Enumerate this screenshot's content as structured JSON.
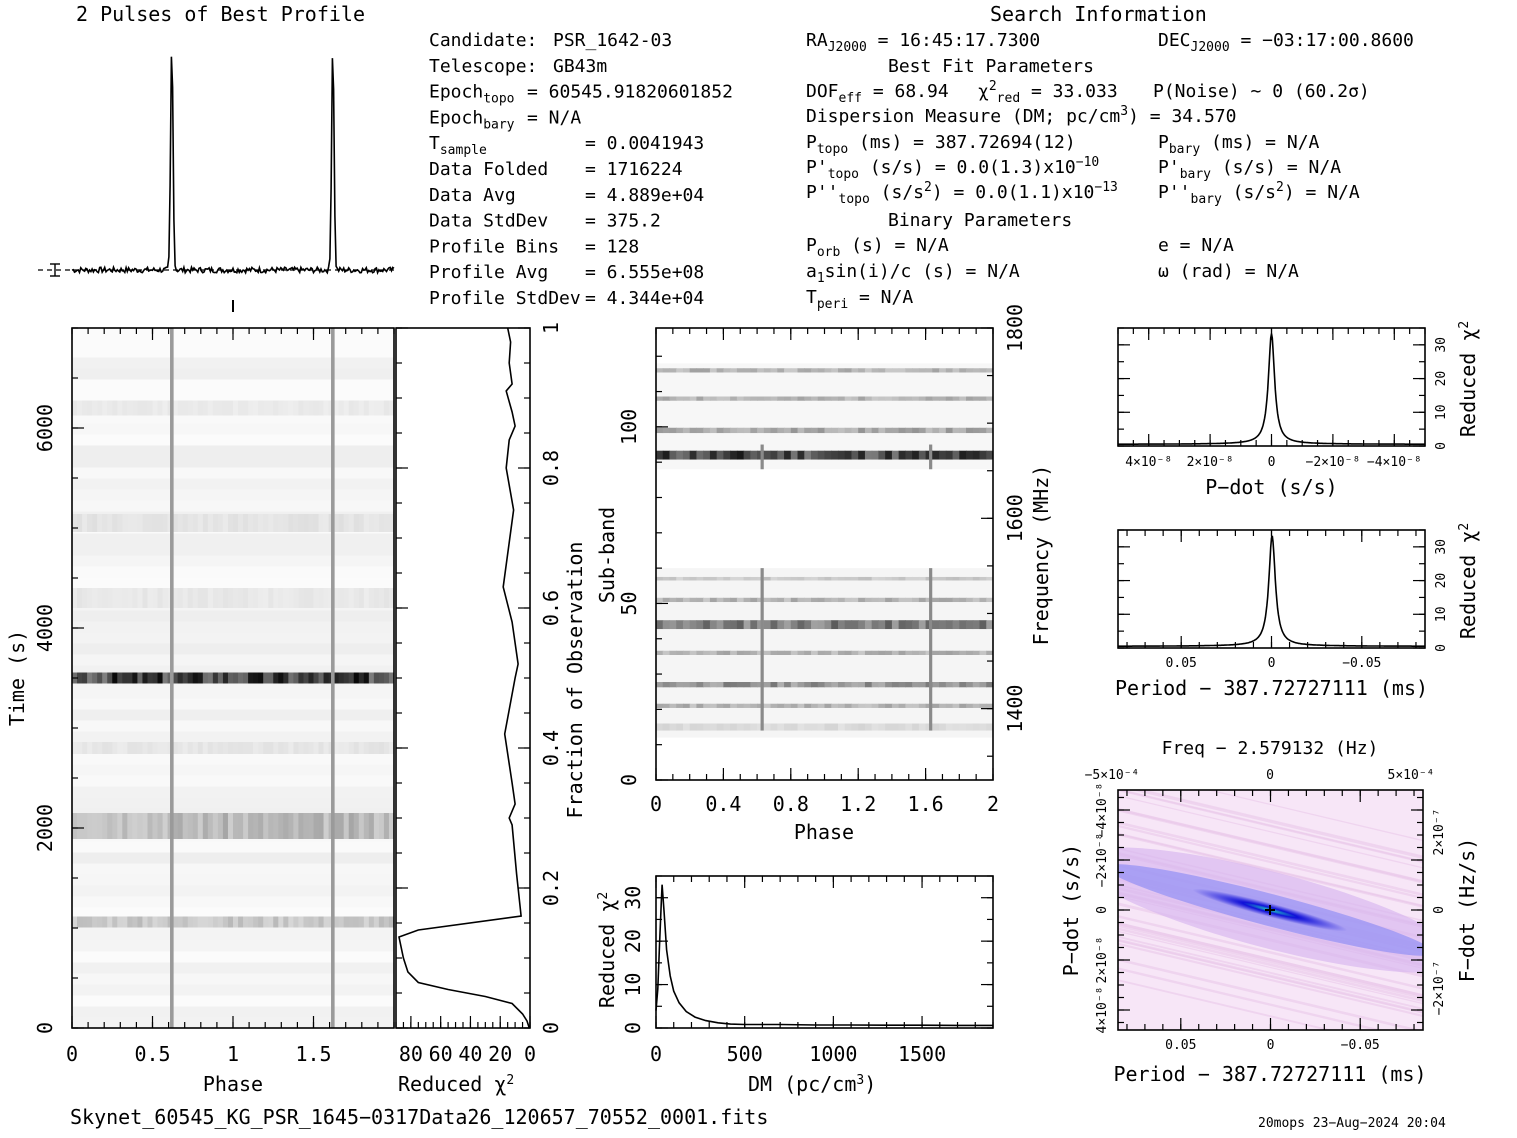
{
  "header": {
    "profile_title": "2 Pulses of Best Profile",
    "search_title": "Search Information",
    "best_fit_title": "Best Fit Parameters",
    "binary_title": "Binary Parameters"
  },
  "candidate_info": [
    {
      "label": "Candidate:",
      "value": "PSR_1642-03"
    },
    {
      "label": "Telescope:",
      "value": "GB43m"
    },
    {
      "label": "Epoch",
      "sub": "topo",
      "value": "= 60545.91820601852"
    },
    {
      "label": "Epoch",
      "sub": "bary",
      "value": "= N/A"
    },
    {
      "label": "T",
      "sub": "sample",
      "value": "= 0.0041943"
    },
    {
      "label": "Data Folded",
      "value": "= 1716224"
    },
    {
      "label": "Data Avg",
      "value": "= 4.889e+04"
    },
    {
      "label": "Data StdDev",
      "value": "= 375.2"
    },
    {
      "label": "Profile Bins",
      "value": "= 128"
    },
    {
      "label": "Profile Avg",
      "value": "= 6.555e+08"
    },
    {
      "label": "Profile StdDev",
      "value": "= 4.344e+04"
    }
  ],
  "search_info": {
    "ra": {
      "label": "RA",
      "sub": "J2000",
      "value": "= 16:45:17.7300"
    },
    "dec": {
      "label": "DEC",
      "sub": "J2000",
      "value": "= −03:17:00.8600"
    },
    "dof": {
      "label": "DOF",
      "sub": "eff",
      "value": "= 68.94"
    },
    "chi2": {
      "label": "χ",
      "sup": "2",
      "sub": "red",
      "value": "= 33.033"
    },
    "noise": "P(Noise) ~ 0   (60.2σ)",
    "dm": "Dispersion Measure (DM; pc/cm",
    "dm_sup": "3",
    "dm_value": ") = 34.570",
    "p_topo": {
      "label": "P",
      "sub": "topo",
      "value": "(ms) =  387.72694(12)"
    },
    "p_bary": {
      "label": "P",
      "sub": "bary",
      "value": "(ms) = N/A"
    },
    "pd_topo": {
      "label": "P'",
      "sub": "topo",
      "value": "(s/s) = 0.0(1.3)x10",
      "exp": "−10"
    },
    "pd_bary": {
      "label": "P'",
      "sub": "bary",
      "value": "(s/s) = N/A"
    },
    "pdd_topo": {
      "label": "P''",
      "sub": "topo",
      "value": "(s/s",
      "value2": ") = 0.0(1.1)x10",
      "sup": "2",
      "exp": "−13"
    },
    "pdd_bary": {
      "label": "P''",
      "sub": "bary",
      "value": "(s/s",
      "value2": ") = N/A",
      "sup": "2"
    },
    "p_orb": {
      "label": "P",
      "sub": "orb",
      "value": "(s) = N/A"
    },
    "e": "e = N/A",
    "a1": {
      "label": "a",
      "sub": "1",
      "value": "sin(i)/c (s) = N/A"
    },
    "omega": "ω (rad) = N/A",
    "t_peri": {
      "label": "T",
      "sub": "peri",
      "value": "= N/A"
    }
  },
  "footer": {
    "filename": "Skynet_60545_KG_PSR_1645−0317Data26_120657_70552_0001.fits",
    "stamp": "20mops 23−Aug−2024 20:04"
  },
  "colors": {
    "ink": "#000000",
    "grey": "#888888",
    "ppdot_bg": "#f7e6f7",
    "ppdot_core": "#1a1aff",
    "ppdot_center": "#20c0c0"
  },
  "chart_data": [
    {
      "id": "profile",
      "type": "line",
      "title": "2 Pulses of Best Profile",
      "xlim": [
        0,
        2
      ],
      "peaks": [
        0.62,
        1.62
      ],
      "baseline": 0.0,
      "peak_height": 1.0
    },
    {
      "id": "time_phase",
      "type": "heatmap",
      "xlabel": "Phase",
      "ylabel": "Time (s)",
      "xlim": [
        0,
        2
      ],
      "ylim": [
        0,
        7000
      ],
      "x_ticks": [
        "0",
        "0.5",
        "1",
        "1.5"
      ],
      "x_tick_values": [
        0,
        0.5,
        1,
        1.5
      ],
      "y_ticks": [
        "0",
        "2000",
        "4000",
        "6000"
      ],
      "y_tick_values": [
        0,
        2000,
        4000,
        6000
      ],
      "pulse_phases": [
        0.62,
        1.62
      ],
      "bands": [
        {
          "t": 3500,
          "w": 110,
          "level": 0.85
        },
        {
          "t": 2020,
          "w": 260,
          "level": 0.28
        },
        {
          "t": 1060,
          "w": 110,
          "level": 0.22
        },
        {
          "t": 5050,
          "w": 180,
          "level": 0.08
        },
        {
          "t": 4300,
          "w": 200,
          "level": 0.06
        },
        {
          "t": 2800,
          "w": 120,
          "level": 0.07
        },
        {
          "t": 6200,
          "w": 150,
          "level": 0.05
        }
      ]
    },
    {
      "id": "chi2_vs_fraction",
      "type": "line",
      "xlabel": "Reduced χ",
      "xlabel_sup": "2",
      "ylabel": "Fraction of Observation",
      "xlim": [
        90,
        0
      ],
      "ylim": [
        0,
        1
      ],
      "x_ticks": [
        "80",
        "60",
        "40",
        "20",
        "0"
      ],
      "x_tick_values": [
        80,
        60,
        40,
        20,
        0
      ],
      "y_ticks": [
        "0",
        "0.2",
        "0.4",
        "0.6",
        "0.8",
        "1"
      ],
      "y_tick_values": [
        0,
        0.2,
        0.4,
        0.6,
        0.8,
        1
      ],
      "x": [
        0.5,
        2,
        5,
        12,
        30,
        55,
        75,
        82,
        85,
        88,
        75,
        6,
        9,
        12,
        14,
        10,
        12,
        17,
        10,
        8,
        12,
        18,
        11,
        16,
        14,
        10,
        12,
        16,
        12,
        14,
        13,
        15
      ],
      "y": [
        0,
        0.01,
        0.02,
        0.035,
        0.045,
        0.055,
        0.065,
        0.08,
        0.1,
        0.13,
        0.14,
        0.16,
        0.22,
        0.29,
        0.3,
        0.32,
        0.35,
        0.42,
        0.5,
        0.52,
        0.58,
        0.63,
        0.74,
        0.8,
        0.84,
        0.86,
        0.88,
        0.91,
        0.92,
        0.95,
        0.98,
        1.0
      ]
    },
    {
      "id": "subband_phase",
      "type": "heatmap",
      "xlabel": "Phase",
      "ylabel": "Sub-band",
      "ylabel_right": "Frequency (MHz)",
      "xlim": [
        0,
        2
      ],
      "ylim": [
        0,
        128
      ],
      "x_ticks": [
        "0",
        "0.4",
        "0.8",
        "1.2",
        "1.6",
        "2"
      ],
      "x_tick_values": [
        0,
        0.4,
        0.8,
        1.2,
        1.6,
        2
      ],
      "y_ticks": [
        "0",
        "50",
        "100"
      ],
      "y_tick_values": [
        0,
        50,
        100
      ],
      "y2_ticks": [
        "1400",
        "1600",
        "1800"
      ],
      "y2_tick_values": [
        1400,
        1600,
        1800
      ],
      "y2lim": [
        1325,
        1800
      ],
      "pulse_phases": [
        0.63,
        1.63
      ],
      "pulse_sub_range": [
        [
          14,
          60
        ],
        [
          88,
          95
        ]
      ],
      "bands": [
        {
          "s": 92,
          "w": 2.5,
          "level": 0.8
        },
        {
          "s": 44,
          "w": 2.5,
          "level": 0.55
        },
        {
          "s": 27,
          "w": 1.5,
          "level": 0.45
        },
        {
          "s": 99,
          "w": 1.5,
          "level": 0.35
        },
        {
          "s": 108,
          "w": 1.2,
          "level": 0.3
        },
        {
          "s": 116,
          "w": 1.2,
          "level": 0.3
        },
        {
          "s": 51,
          "w": 1.2,
          "level": 0.3
        },
        {
          "s": 36,
          "w": 1.2,
          "level": 0.3
        },
        {
          "s": 21,
          "w": 1.2,
          "level": 0.3
        },
        {
          "s": 57,
          "w": 1.0,
          "level": 0.2
        },
        {
          "s": 15,
          "w": 2.0,
          "level": 0.12
        }
      ]
    },
    {
      "id": "dm_chi2",
      "type": "line",
      "xlabel": "DM (pc/cm",
      "xlabel_sup": "3",
      "ylabel": "Reduced χ",
      "ylabel_sup": "2",
      "xlim": [
        0,
        1900
      ],
      "ylim": [
        0,
        35
      ],
      "x_ticks": [
        "0",
        "500",
        "1000",
        "1500"
      ],
      "x_tick_values": [
        0,
        500,
        1000,
        1500
      ],
      "y_ticks": [
        "0",
        "10",
        "20",
        "30"
      ],
      "y_tick_values": [
        0,
        10,
        20,
        30
      ],
      "x": [
        0,
        10,
        20,
        30,
        34.57,
        45,
        60,
        80,
        100,
        130,
        170,
        220,
        280,
        350,
        420,
        500,
        700,
        900,
        1100,
        1300,
        1500,
        1700,
        1900
      ],
      "y": [
        4,
        9,
        19,
        29,
        33,
        27,
        18,
        12,
        8.5,
        5.8,
        3.8,
        2.5,
        1.7,
        1.2,
        0.9,
        0.8,
        0.8,
        0.7,
        0.7,
        0.65,
        0.65,
        0.6,
        0.6
      ]
    },
    {
      "id": "pdot_chi2",
      "type": "line",
      "xlabel": "P−dot (s/s)",
      "ylabel": "Reduced χ",
      "ylabel_sup": "2",
      "xlim": [
        5e-08,
        -5e-08
      ],
      "ylim": [
        0,
        35
      ],
      "x_ticks": [
        "4×10⁻⁸",
        "2×10⁻⁸",
        "0",
        "−2×10⁻⁸",
        "−4×10⁻⁸"
      ],
      "x_tick_values": [
        4e-08,
        2e-08,
        0,
        -2e-08,
        -4e-08
      ],
      "y_ticks": [
        "0",
        "10",
        "20",
        "30"
      ],
      "y_tick_values": [
        0,
        10,
        20,
        30
      ],
      "curve": "lorentzian",
      "center": 0,
      "peak": 33,
      "width": 1.4e-09,
      "floor": 0.5
    },
    {
      "id": "period_chi2",
      "type": "line",
      "xlabel": "Period − 387.72727111 (ms)",
      "ylabel": "Reduced χ",
      "ylabel_sup": "2",
      "xlim": [
        0.085,
        -0.085
      ],
      "ylim": [
        0,
        35
      ],
      "x_ticks": [
        "0.05",
        "0",
        "−0.05"
      ],
      "x_tick_values": [
        0.05,
        0,
        -0.05
      ],
      "y_ticks": [
        "0",
        "10",
        "20",
        "30"
      ],
      "y_tick_values": [
        0,
        10,
        20,
        30
      ],
      "curve": "lorentzian",
      "center": -0.00033,
      "peak": 33,
      "width": 0.0025,
      "floor": 0.5
    },
    {
      "id": "p_pdot",
      "type": "heatmap",
      "title": "Freq − 2.579132 (Hz)",
      "xlabel": "Period − 387.72727111 (ms)",
      "ylabel": "P−dot (s/s)",
      "ylabel_right": "F−dot (Hz/s)",
      "xlim": [
        0.085,
        -0.085
      ],
      "x_ticks": [
        "0.05",
        "0",
        "−0.05"
      ],
      "x_tick_values": [
        0.05,
        0,
        -0.05
      ],
      "x2_ticks": [
        "−5×10⁻⁴",
        "0",
        "5×10⁻⁴"
      ],
      "y_ticks": [
        "4×10⁻⁸",
        "2×10⁻⁸",
        "0",
        "−2×10⁻⁸",
        "−4×10⁻⁸"
      ],
      "y_tick_values": [
        4e-08,
        2e-08,
        0,
        -2e-08,
        -4e-08
      ],
      "y2_ticks": [
        "−2×10⁻⁷",
        "0",
        "2×10⁻⁷"
      ],
      "ylim": [
        4.8e-08,
        -4.8e-08
      ]
    }
  ]
}
